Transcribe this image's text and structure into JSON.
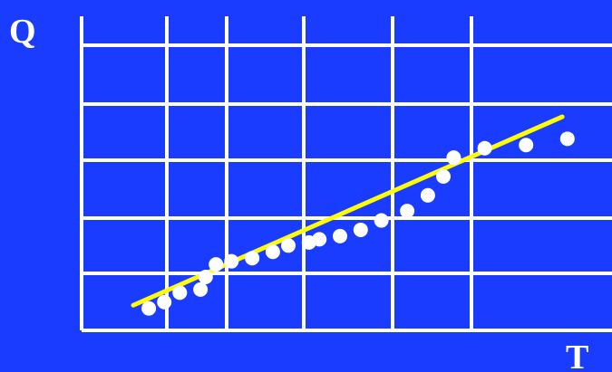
{
  "chart_data": {
    "type": "scatter",
    "xlabel": "T",
    "ylabel": "Q",
    "xlim": [
      0,
      10
    ],
    "ylim": [
      0,
      10
    ],
    "grid": true,
    "colors": {
      "background": "#1a3cff",
      "grid": "#ffffff",
      "points": "#ffffff",
      "trendline": "#ffff00"
    },
    "points": [
      {
        "x": 1.3,
        "y": 0.7
      },
      {
        "x": 1.6,
        "y": 0.9
      },
      {
        "x": 1.9,
        "y": 1.2
      },
      {
        "x": 2.3,
        "y": 1.3
      },
      {
        "x": 2.4,
        "y": 1.7
      },
      {
        "x": 2.6,
        "y": 2.1
      },
      {
        "x": 2.9,
        "y": 2.2
      },
      {
        "x": 3.3,
        "y": 2.3
      },
      {
        "x": 3.7,
        "y": 2.5
      },
      {
        "x": 4.0,
        "y": 2.7
      },
      {
        "x": 4.4,
        "y": 2.8
      },
      {
        "x": 4.6,
        "y": 2.9
      },
      {
        "x": 5.0,
        "y": 3.0
      },
      {
        "x": 5.4,
        "y": 3.2
      },
      {
        "x": 5.8,
        "y": 3.5
      },
      {
        "x": 6.3,
        "y": 3.8
      },
      {
        "x": 6.7,
        "y": 4.3
      },
      {
        "x": 7.0,
        "y": 4.9
      },
      {
        "x": 7.2,
        "y": 5.5
      },
      {
        "x": 7.8,
        "y": 5.8
      },
      {
        "x": 8.6,
        "y": 5.9
      },
      {
        "x": 9.4,
        "y": 6.1
      }
    ],
    "trendline": {
      "x": [
        1.0,
        9.3
      ],
      "y": [
        0.8,
        6.8
      ]
    }
  }
}
